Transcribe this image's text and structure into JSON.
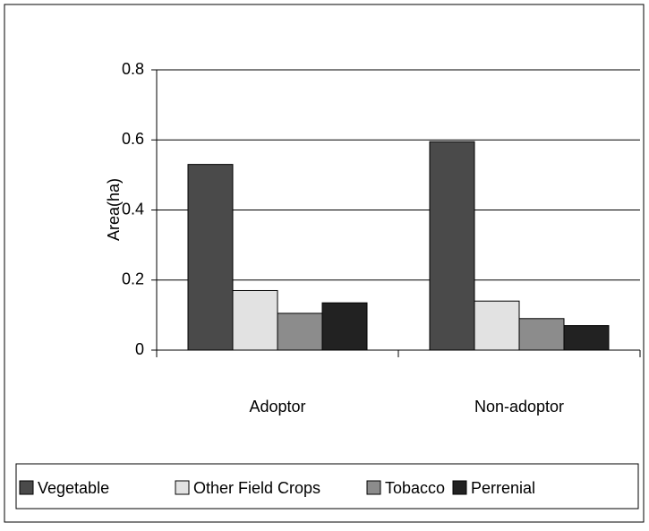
{
  "chart_data": {
    "type": "bar",
    "y_label": "Area(ha)",
    "categories": [
      "Adoptor",
      "Non-adoptor"
    ],
    "series": [
      {
        "name": "Vegetable",
        "color": "#4a4a4a",
        "values": [
          0.53,
          0.595
        ]
      },
      {
        "name": "Other Field Crops",
        "color": "#e2e2e2",
        "values": [
          0.17,
          0.14
        ]
      },
      {
        "name": "Tobacco",
        "color": "#8c8c8c",
        "values": [
          0.105,
          0.09
        ]
      },
      {
        "name": "Perrenial",
        "color": "#222222",
        "values": [
          0.135,
          0.07
        ]
      }
    ],
    "ylim": [
      0,
      0.8
    ],
    "yticks": [
      0,
      0.2,
      0.4,
      0.6,
      0.8
    ],
    "grid": true,
    "legend": "bottom"
  }
}
